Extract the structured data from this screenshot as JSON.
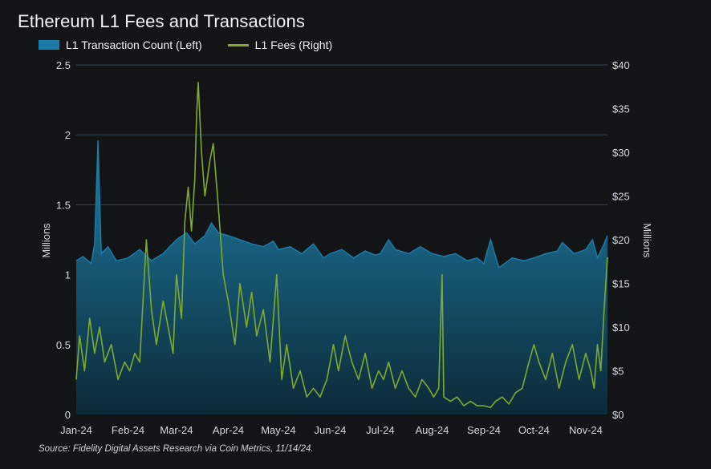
{
  "colors": {
    "background": "#121416",
    "transactions": "#1a7aa8",
    "transactions_fill_top": "#1f7ea6",
    "transactions_fill_bottom": "#0c2a38",
    "fees": "#7dab2d",
    "grid": "#2b4a5c"
  },
  "header": {
    "title": "Ethereum L1 Fees and Transactions"
  },
  "legend": {
    "transactions_label": "L1 Transaction Count (Left)",
    "fees_label": "L1 Fees (Right)"
  },
  "footer": {
    "source": "Source: Fidelity Digital Assets Research via Coin Metrics, 11/14/24."
  },
  "chart_data": {
    "type": "area",
    "title": "Ethereum L1 Fees and Transactions",
    "x_tick_labels": [
      "Jan-24",
      "Feb-24",
      "Mar-24",
      "Apr-24",
      "May-24",
      "Jun-24",
      "Jul-24",
      "Aug-24",
      "Sep-24",
      "Oct-24",
      "Nov-24"
    ],
    "x_range": [
      "2024-01-01",
      "2024-11-14"
    ],
    "ylabel_left": "Millions",
    "ylabel_right": "Millions",
    "ylim_left": [
      0,
      2.5
    ],
    "ylim_right": [
      0,
      40
    ],
    "left_tick_labels": [
      "0",
      "0.5",
      "1",
      "1.5",
      "2",
      "2.5"
    ],
    "right_tick_labels": [
      "$0",
      "$5",
      "$10",
      "$15",
      "$20",
      "$25",
      "$30",
      "$35",
      "$40"
    ],
    "grid": "horizontal",
    "legend_position": "top-left",
    "series": [
      {
        "name": "L1 Transaction Count (Left)",
        "axis": "left",
        "style": "area",
        "points": [
          [
            "2024-01-01",
            1.1
          ],
          [
            "2024-01-05",
            1.13
          ],
          [
            "2024-01-10",
            1.08
          ],
          [
            "2024-01-12",
            1.22
          ],
          [
            "2024-01-14",
            1.96
          ],
          [
            "2024-01-16",
            1.15
          ],
          [
            "2024-01-20",
            1.2
          ],
          [
            "2024-01-25",
            1.1
          ],
          [
            "2024-02-01",
            1.12
          ],
          [
            "2024-02-08",
            1.18
          ],
          [
            "2024-02-15",
            1.1
          ],
          [
            "2024-02-22",
            1.15
          ],
          [
            "2024-03-01",
            1.25
          ],
          [
            "2024-03-07",
            1.3
          ],
          [
            "2024-03-12",
            1.22
          ],
          [
            "2024-03-18",
            1.28
          ],
          [
            "2024-03-22",
            1.37
          ],
          [
            "2024-03-26",
            1.3
          ],
          [
            "2024-04-01",
            1.28
          ],
          [
            "2024-04-08",
            1.25
          ],
          [
            "2024-04-15",
            1.22
          ],
          [
            "2024-04-22",
            1.2
          ],
          [
            "2024-04-28",
            1.24
          ],
          [
            "2024-05-01",
            1.18
          ],
          [
            "2024-05-08",
            1.2
          ],
          [
            "2024-05-15",
            1.15
          ],
          [
            "2024-05-22",
            1.22
          ],
          [
            "2024-05-28",
            1.12
          ],
          [
            "2024-06-01",
            1.15
          ],
          [
            "2024-06-08",
            1.18
          ],
          [
            "2024-06-15",
            1.12
          ],
          [
            "2024-06-22",
            1.17
          ],
          [
            "2024-06-28",
            1.14
          ],
          [
            "2024-07-01",
            1.15
          ],
          [
            "2024-07-06",
            1.25
          ],
          [
            "2024-07-10",
            1.18
          ],
          [
            "2024-07-18",
            1.15
          ],
          [
            "2024-07-25",
            1.2
          ],
          [
            "2024-08-01",
            1.15
          ],
          [
            "2024-08-08",
            1.13
          ],
          [
            "2024-08-15",
            1.15
          ],
          [
            "2024-08-22",
            1.1
          ],
          [
            "2024-08-28",
            1.12
          ],
          [
            "2024-09-01",
            1.08
          ],
          [
            "2024-09-05",
            1.25
          ],
          [
            "2024-09-10",
            1.05
          ],
          [
            "2024-09-18",
            1.12
          ],
          [
            "2024-09-25",
            1.1
          ],
          [
            "2024-10-01",
            1.12
          ],
          [
            "2024-10-08",
            1.15
          ],
          [
            "2024-10-15",
            1.17
          ],
          [
            "2024-10-18",
            1.23
          ],
          [
            "2024-10-25",
            1.15
          ],
          [
            "2024-11-01",
            1.18
          ],
          [
            "2024-11-05",
            1.25
          ],
          [
            "2024-11-08",
            1.12
          ],
          [
            "2024-11-12",
            1.22
          ],
          [
            "2024-11-14",
            1.28
          ]
        ]
      },
      {
        "name": "L1 Fees (Right)",
        "axis": "right",
        "style": "line",
        "points": [
          [
            "2024-01-01",
            4
          ],
          [
            "2024-01-03",
            9
          ],
          [
            "2024-01-06",
            5
          ],
          [
            "2024-01-09",
            11
          ],
          [
            "2024-01-12",
            7
          ],
          [
            "2024-01-15",
            10
          ],
          [
            "2024-01-18",
            6
          ],
          [
            "2024-01-22",
            8
          ],
          [
            "2024-01-26",
            4
          ],
          [
            "2024-01-30",
            6
          ],
          [
            "2024-02-02",
            5
          ],
          [
            "2024-02-05",
            7
          ],
          [
            "2024-02-08",
            6
          ],
          [
            "2024-02-12",
            20
          ],
          [
            "2024-02-15",
            12
          ],
          [
            "2024-02-18",
            8
          ],
          [
            "2024-02-22",
            13
          ],
          [
            "2024-02-26",
            9
          ],
          [
            "2024-02-28",
            7
          ],
          [
            "2024-03-01",
            16
          ],
          [
            "2024-03-04",
            11
          ],
          [
            "2024-03-06",
            22
          ],
          [
            "2024-03-08",
            26
          ],
          [
            "2024-03-10",
            21
          ],
          [
            "2024-03-12",
            27
          ],
          [
            "2024-03-13",
            34
          ],
          [
            "2024-03-14",
            38
          ],
          [
            "2024-03-16",
            30
          ],
          [
            "2024-03-18",
            25
          ],
          [
            "2024-03-21",
            29
          ],
          [
            "2024-03-23",
            31
          ],
          [
            "2024-03-26",
            24
          ],
          [
            "2024-03-29",
            16
          ],
          [
            "2024-04-01",
            13
          ],
          [
            "2024-04-05",
            8
          ],
          [
            "2024-04-08",
            15
          ],
          [
            "2024-04-12",
            10
          ],
          [
            "2024-04-15",
            14
          ],
          [
            "2024-04-18",
            9
          ],
          [
            "2024-04-22",
            12
          ],
          [
            "2024-04-26",
            6
          ],
          [
            "2024-04-30",
            16
          ],
          [
            "2024-05-03",
            4
          ],
          [
            "2024-05-06",
            8
          ],
          [
            "2024-05-10",
            3
          ],
          [
            "2024-05-14",
            5
          ],
          [
            "2024-05-18",
            2
          ],
          [
            "2024-05-22",
            3
          ],
          [
            "2024-05-26",
            2
          ],
          [
            "2024-05-30",
            4
          ],
          [
            "2024-06-03",
            8
          ],
          [
            "2024-06-06",
            5
          ],
          [
            "2024-06-10",
            9
          ],
          [
            "2024-06-14",
            6
          ],
          [
            "2024-06-18",
            4
          ],
          [
            "2024-06-22",
            7
          ],
          [
            "2024-06-26",
            3
          ],
          [
            "2024-06-30",
            5
          ],
          [
            "2024-07-03",
            4
          ],
          [
            "2024-07-06",
            6
          ],
          [
            "2024-07-10",
            3
          ],
          [
            "2024-07-14",
            5
          ],
          [
            "2024-07-18",
            3
          ],
          [
            "2024-07-22",
            2
          ],
          [
            "2024-07-26",
            4
          ],
          [
            "2024-07-30",
            3
          ],
          [
            "2024-08-02",
            2
          ],
          [
            "2024-08-05",
            3
          ],
          [
            "2024-08-07",
            16
          ],
          [
            "2024-08-08",
            2
          ],
          [
            "2024-08-12",
            1.5
          ],
          [
            "2024-08-16",
            2
          ],
          [
            "2024-08-20",
            1
          ],
          [
            "2024-08-24",
            1.5
          ],
          [
            "2024-08-28",
            1
          ],
          [
            "2024-09-01",
            1
          ],
          [
            "2024-09-05",
            0.8
          ],
          [
            "2024-09-08",
            1.5
          ],
          [
            "2024-09-12",
            2
          ],
          [
            "2024-09-16",
            1.2
          ],
          [
            "2024-09-20",
            2.5
          ],
          [
            "2024-09-24",
            3
          ],
          [
            "2024-09-28",
            6
          ],
          [
            "2024-10-01",
            8
          ],
          [
            "2024-10-04",
            6
          ],
          [
            "2024-10-08",
            4
          ],
          [
            "2024-10-12",
            7
          ],
          [
            "2024-10-16",
            3
          ],
          [
            "2024-10-20",
            6
          ],
          [
            "2024-10-24",
            8
          ],
          [
            "2024-10-28",
            4
          ],
          [
            "2024-11-01",
            7
          ],
          [
            "2024-11-04",
            5
          ],
          [
            "2024-11-06",
            3
          ],
          [
            "2024-11-08",
            8
          ],
          [
            "2024-11-10",
            5
          ],
          [
            "2024-11-12",
            12
          ],
          [
            "2024-11-14",
            18
          ]
        ]
      }
    ]
  }
}
